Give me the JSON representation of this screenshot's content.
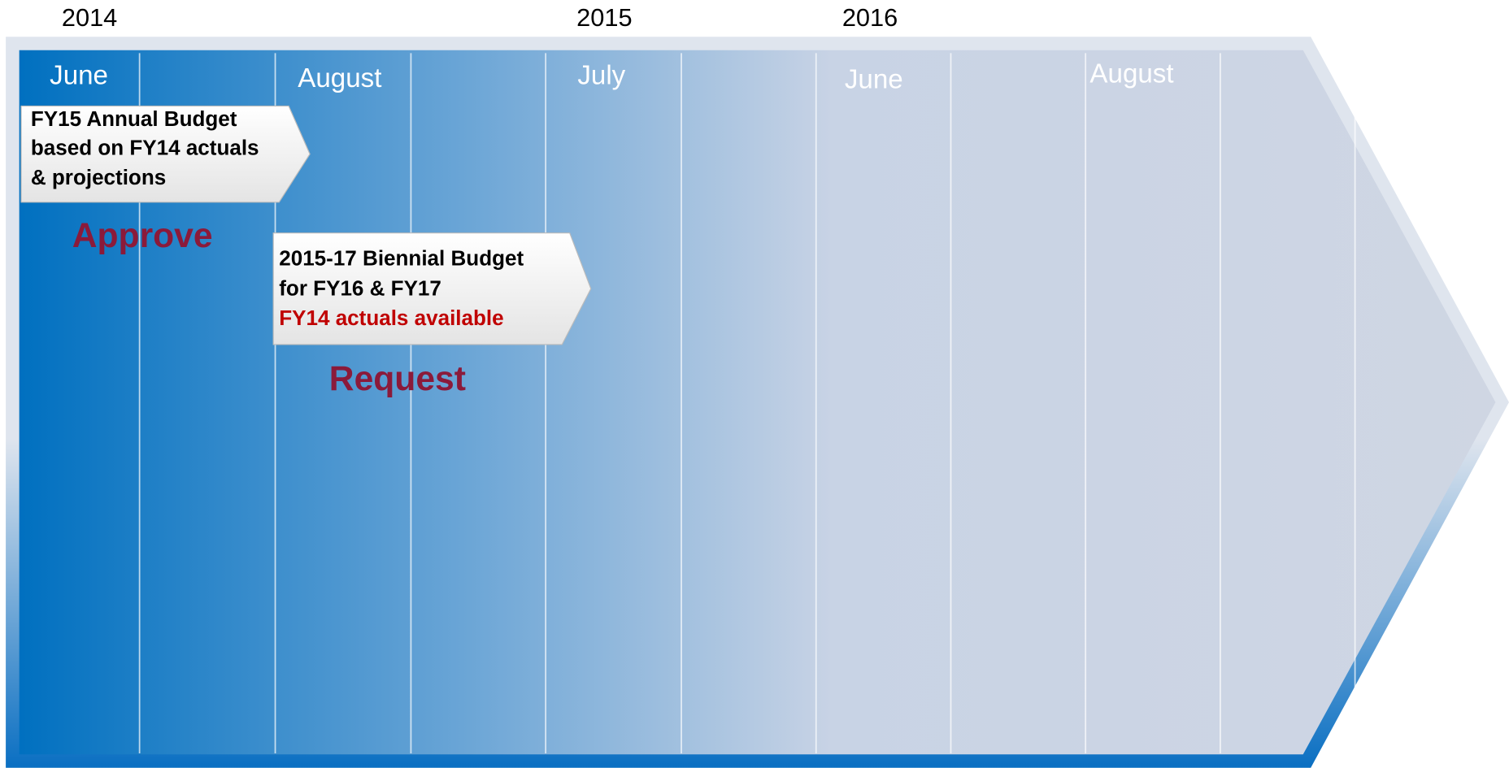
{
  "years": [
    "2014",
    "2015",
    "2016"
  ],
  "months": [
    "June",
    "August",
    "July",
    "June",
    "August"
  ],
  "callouts": [
    {
      "lines": [
        "FY15 Annual Budget",
        "based on FY14 actuals",
        "& projections"
      ]
    },
    {
      "lines": [
        "2015-17 Biennial Budget",
        "for FY16 & FY17",
        "FY14 actuals available"
      ]
    }
  ],
  "stages": [
    "Approve",
    "Request"
  ]
}
